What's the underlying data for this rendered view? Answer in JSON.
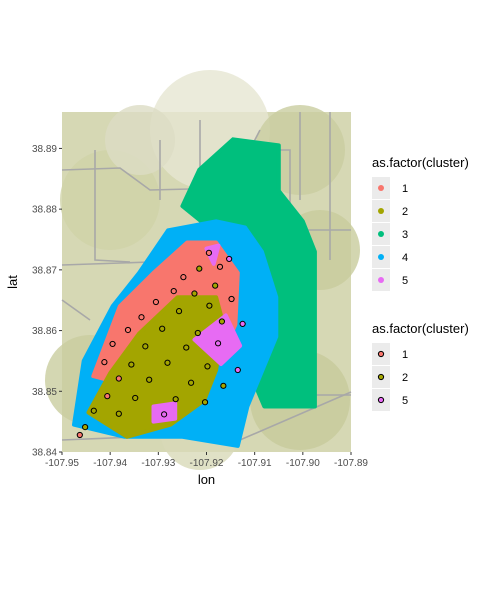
{
  "chart_data": {
    "type": "scatter",
    "background": "map",
    "xlabel": "lon",
    "ylabel": "lat",
    "xlim": [
      -107.95,
      -107.89
    ],
    "ylim": [
      38.84,
      38.896
    ],
    "x_ticks": [
      -107.95,
      -107.94,
      -107.93,
      -107.92,
      -107.91,
      -107.9,
      -107.89
    ],
    "x_tick_labels": [
      "-107.95",
      "-107.94",
      "-107.93",
      "-107.92",
      "-107.91",
      "-107.90",
      "-107.89"
    ],
    "y_ticks": [
      38.84,
      38.85,
      38.86,
      38.87,
      38.88,
      38.89
    ],
    "y_tick_labels": [
      "38.84",
      "38.85",
      "38.86",
      "38.87",
      "38.88",
      "38.89"
    ],
    "legends": [
      {
        "title": "as.factor(cluster)",
        "marker": "filled-dot",
        "entries": [
          {
            "label": "1",
            "color": "#F8766D"
          },
          {
            "label": "2",
            "color": "#A3A500"
          },
          {
            "label": "3",
            "color": "#00BF7D"
          },
          {
            "label": "4",
            "color": "#00B0F6"
          },
          {
            "label": "5",
            "color": "#E76BF3"
          }
        ]
      },
      {
        "title": "as.factor(cluster)",
        "marker": "outlined-dot",
        "entries": [
          {
            "label": "1",
            "color": "#F8766D"
          },
          {
            "label": "2",
            "color": "#A3A500"
          },
          {
            "label": "5",
            "color": "#E76BF3"
          }
        ]
      }
    ],
    "region_polygons": [
      {
        "cluster": "3",
        "color": "#00BF7D",
        "points": [
          [
            -107.9145,
            38.8915
          ],
          [
            -107.905,
            38.8905
          ],
          [
            -107.905,
            38.883
          ],
          [
            -107.9,
            38.878
          ],
          [
            -107.8975,
            38.873
          ],
          [
            -107.8975,
            38.8475
          ],
          [
            -107.908,
            38.8475
          ],
          [
            -107.912,
            38.855
          ],
          [
            -107.916,
            38.866
          ],
          [
            -107.918,
            38.876
          ],
          [
            -107.925,
            38.8805
          ],
          [
            -107.9215,
            38.8865
          ]
        ]
      },
      {
        "cluster": "4",
        "color": "#00B0F6",
        "points": [
          [
            -107.9475,
            38.8445
          ],
          [
            -107.9455,
            38.855
          ],
          [
            -107.9395,
            38.864
          ],
          [
            -107.934,
            38.8695
          ],
          [
            -107.928,
            38.8765
          ],
          [
            -107.918,
            38.878
          ],
          [
            -107.912,
            38.877
          ],
          [
            -107.9085,
            38.873
          ],
          [
            -107.9055,
            38.8655
          ],
          [
            -107.9055,
            38.859
          ],
          [
            -107.9115,
            38.8475
          ],
          [
            -107.9135,
            38.841
          ],
          [
            -107.925,
            38.8425
          ],
          [
            -107.937,
            38.8425
          ]
        ]
      },
      {
        "cluster": "1",
        "color": "#F8766D",
        "points": [
          [
            -107.9435,
            38.8525
          ],
          [
            -107.938,
            38.864
          ],
          [
            -107.931,
            38.8695
          ],
          [
            -107.924,
            38.8745
          ],
          [
            -107.918,
            38.8745
          ],
          [
            -107.9135,
            38.8695
          ],
          [
            -107.914,
            38.861
          ],
          [
            -107.917,
            38.8555
          ],
          [
            -107.926,
            38.8525
          ],
          [
            -107.934,
            38.8505
          ]
        ]
      },
      {
        "cluster": "2",
        "color": "#A3A500",
        "points": [
          [
            -107.9445,
            38.8465
          ],
          [
            -107.94,
            38.853
          ],
          [
            -107.934,
            38.8595
          ],
          [
            -107.926,
            38.8655
          ],
          [
            -107.918,
            38.8655
          ],
          [
            -107.9165,
            38.861
          ],
          [
            -107.918,
            38.8535
          ],
          [
            -107.9205,
            38.8485
          ],
          [
            -107.9275,
            38.8445
          ],
          [
            -107.9365,
            38.8425
          ]
        ]
      },
      {
        "cluster": "5",
        "color": "#E76BF3",
        "points": [
          [
            -107.9225,
            38.8585
          ],
          [
            -107.916,
            38.8625
          ],
          [
            -107.913,
            38.8575
          ],
          [
            -107.917,
            38.8545
          ]
        ]
      },
      {
        "cluster": "5",
        "color": "#E76BF3",
        "points": [
          [
            -107.931,
            38.8475
          ],
          [
            -107.9265,
            38.848
          ],
          [
            -107.9265,
            38.8455
          ],
          [
            -107.931,
            38.845
          ]
        ]
      },
      {
        "cluster": "5",
        "color": "#E76BF3",
        "points": [
          [
            -107.92,
            38.8735
          ],
          [
            -107.9175,
            38.874
          ],
          [
            -107.9185,
            38.871
          ]
        ]
      }
    ],
    "outlined_points": [
      {
        "cluster": "1",
        "x": -107.9195,
        "y": 38.8728
      },
      {
        "cluster": "1",
        "x": -107.9172,
        "y": 38.8705
      },
      {
        "cluster": "2",
        "x": -107.9215,
        "y": 38.8702
      },
      {
        "cluster": "1",
        "x": -107.9248,
        "y": 38.8688
      },
      {
        "cluster": "5",
        "x": -107.9153,
        "y": 38.8718
      },
      {
        "cluster": "2",
        "x": -107.9182,
        "y": 38.8674
      },
      {
        "cluster": "1",
        "x": -107.9268,
        "y": 38.8665
      },
      {
        "cluster": "2",
        "x": -107.9225,
        "y": 38.8661
      },
      {
        "cluster": "1",
        "x": -107.9305,
        "y": 38.8647
      },
      {
        "cluster": "2",
        "x": -107.9194,
        "y": 38.8641
      },
      {
        "cluster": "1",
        "x": -107.9148,
        "y": 38.8652
      },
      {
        "cluster": "2",
        "x": -107.9257,
        "y": 38.8632
      },
      {
        "cluster": "1",
        "x": -107.9335,
        "y": 38.8622
      },
      {
        "cluster": "2",
        "x": -107.9168,
        "y": 38.8615
      },
      {
        "cluster": "5",
        "x": -107.9125,
        "y": 38.8611
      },
      {
        "cluster": "1",
        "x": -107.9363,
        "y": 38.8601
      },
      {
        "cluster": "2",
        "x": -107.9292,
        "y": 38.8603
      },
      {
        "cluster": "2",
        "x": -107.9218,
        "y": 38.8596
      },
      {
        "cluster": "1",
        "x": -107.9395,
        "y": 38.8578
      },
      {
        "cluster": "2",
        "x": -107.9327,
        "y": 38.8574
      },
      {
        "cluster": "2",
        "x": -107.9242,
        "y": 38.8572
      },
      {
        "cluster": "5",
        "x": -107.9176,
        "y": 38.8579
      },
      {
        "cluster": "1",
        "x": -107.9412,
        "y": 38.8548
      },
      {
        "cluster": "2",
        "x": -107.9356,
        "y": 38.8544
      },
      {
        "cluster": "2",
        "x": -107.9281,
        "y": 38.8547
      },
      {
        "cluster": "2",
        "x": -107.9198,
        "y": 38.8541
      },
      {
        "cluster": "1",
        "x": -107.9382,
        "y": 38.8521
      },
      {
        "cluster": "2",
        "x": -107.9319,
        "y": 38.8519
      },
      {
        "cluster": "2",
        "x": -107.9232,
        "y": 38.8514
      },
      {
        "cluster": "2",
        "x": -107.9165,
        "y": 38.8509
      },
      {
        "cluster": "1",
        "x": -107.9406,
        "y": 38.8492
      },
      {
        "cluster": "2",
        "x": -107.9348,
        "y": 38.8489
      },
      {
        "cluster": "2",
        "x": -107.9264,
        "y": 38.8487
      },
      {
        "cluster": "5",
        "x": -107.9288,
        "y": 38.8462
      },
      {
        "cluster": "2",
        "x": -107.9382,
        "y": 38.8463
      },
      {
        "cluster": "2",
        "x": -107.9434,
        "y": 38.8468
      },
      {
        "cluster": "2",
        "x": -107.9452,
        "y": 38.8441
      },
      {
        "cluster": "1",
        "x": -107.9463,
        "y": 38.8428
      },
      {
        "cluster": "2",
        "x": -107.9203,
        "y": 38.8482
      },
      {
        "cluster": "5",
        "x": -107.9135,
        "y": 38.8535
      }
    ],
    "grid": false
  }
}
